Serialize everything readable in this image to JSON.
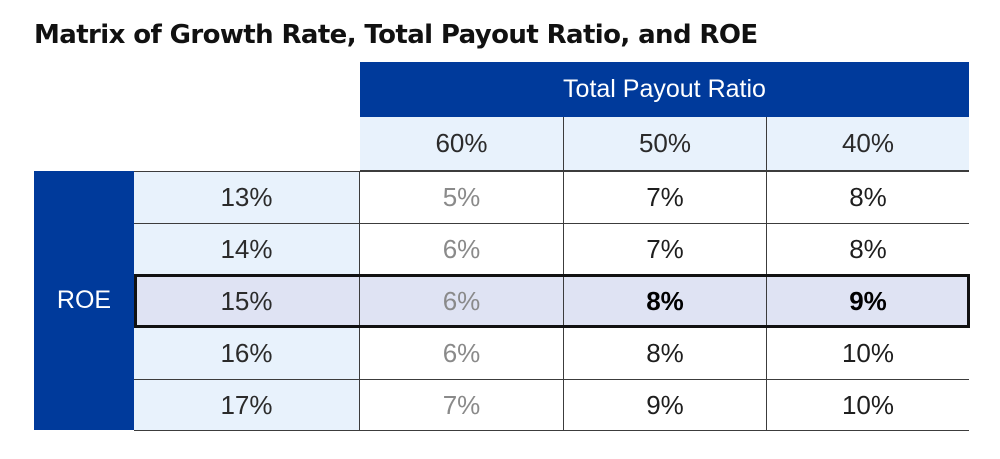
{
  "chart_data": {
    "type": "table",
    "title": "Matrix of Growth Rate, Total Payout Ratio, and ROE",
    "column_group_label": "Total Payout Ratio",
    "row_group_label": "ROE",
    "columns": [
      "60%",
      "50%",
      "40%"
    ],
    "rows": [
      {
        "label": "13%",
        "values": [
          "5%",
          "7%",
          "8%"
        ]
      },
      {
        "label": "14%",
        "values": [
          "6%",
          "7%",
          "8%"
        ]
      },
      {
        "label": "15%",
        "values": [
          "6%",
          "8%",
          "9%"
        ]
      },
      {
        "label": "16%",
        "values": [
          "6%",
          "8%",
          "10%"
        ]
      },
      {
        "label": "17%",
        "values": [
          "7%",
          "9%",
          "10%"
        ]
      }
    ],
    "highlighted_row": "15%",
    "bold_cells_in_highlighted_row": [
      "8%",
      "9%"
    ],
    "colors": {
      "header_band": "#003a9b",
      "header_text": "#ffffff",
      "light_header": "#e8f2fc",
      "highlight_row": "#dfe3f3",
      "first_column_values": "#8a8a8a"
    }
  }
}
